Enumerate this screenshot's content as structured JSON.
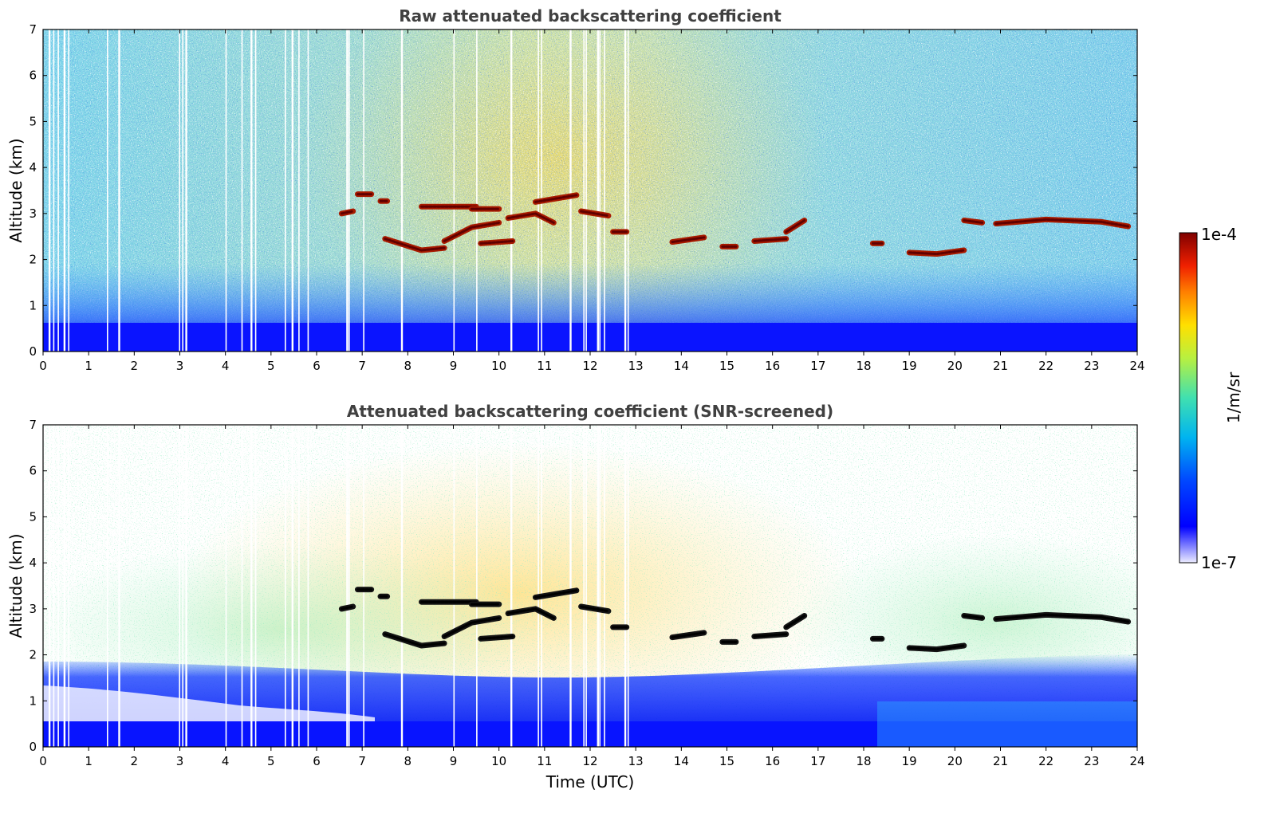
{
  "chart_data": [
    {
      "type": "heatmap",
      "title": "Raw attenuated backscattering coefficient",
      "xlabel": "",
      "ylabel": "Altitude (km)",
      "xlim": [
        0,
        24
      ],
      "ylim": [
        0,
        7
      ],
      "xticks": [
        "0",
        "1",
        "2",
        "3",
        "4",
        "5",
        "6",
        "7",
        "8",
        "9",
        "10",
        "11",
        "12",
        "13",
        "14",
        "15",
        "16",
        "17",
        "18",
        "19",
        "20",
        "21",
        "22",
        "23",
        "24"
      ],
      "yticks": [
        "0",
        "1",
        "2",
        "3",
        "4",
        "5",
        "6",
        "7"
      ],
      "background_level": "noisy",
      "features": [
        {
          "x": [
            6.55,
            6.8
          ],
          "y": [
            3.0,
            3.05
          ],
          "v": "high"
        },
        {
          "x": [
            6.9,
            7.2
          ],
          "y": [
            3.42,
            3.42
          ],
          "v": "high"
        },
        {
          "x": [
            7.4,
            7.55
          ],
          "y": [
            3.27,
            3.27
          ],
          "v": "high"
        },
        {
          "x": [
            7.5,
            8.3,
            8.8
          ],
          "y": [
            2.45,
            2.2,
            2.25
          ],
          "v": "high"
        },
        {
          "x": [
            8.8,
            9.4,
            10.0
          ],
          "y": [
            2.4,
            2.7,
            2.8
          ],
          "v": "high"
        },
        {
          "x": [
            8.3,
            9.5
          ],
          "y": [
            3.15,
            3.15
          ],
          "v": "high"
        },
        {
          "x": [
            9.4,
            10.0
          ],
          "y": [
            3.1,
            3.1
          ],
          "v": "high"
        },
        {
          "x": [
            9.6,
            10.3
          ],
          "y": [
            2.35,
            2.4
          ],
          "v": "high"
        },
        {
          "x": [
            10.2,
            10.8,
            11.2
          ],
          "y": [
            2.9,
            3.0,
            2.8
          ],
          "v": "high"
        },
        {
          "x": [
            10.8,
            11.7
          ],
          "y": [
            3.25,
            3.4
          ],
          "v": "high"
        },
        {
          "x": [
            11.8,
            12.4
          ],
          "y": [
            3.05,
            2.95
          ],
          "v": "high"
        },
        {
          "x": [
            12.5,
            12.8
          ],
          "y": [
            2.6,
            2.6
          ],
          "v": "high"
        },
        {
          "x": [
            13.8,
            14.5
          ],
          "y": [
            2.38,
            2.48
          ],
          "v": "high"
        },
        {
          "x": [
            14.9,
            15.2
          ],
          "y": [
            2.28,
            2.28
          ],
          "v": "high"
        },
        {
          "x": [
            15.6,
            16.3
          ],
          "y": [
            2.4,
            2.45
          ],
          "v": "high"
        },
        {
          "x": [
            16.3,
            16.7
          ],
          "y": [
            2.6,
            2.85
          ],
          "v": "high"
        },
        {
          "x": [
            18.2,
            18.4
          ],
          "y": [
            2.35,
            2.35
          ],
          "v": "high"
        },
        {
          "x": [
            19.0,
            19.6,
            20.2
          ],
          "y": [
            2.15,
            2.12,
            2.2
          ],
          "v": "high"
        },
        {
          "x": [
            20.2,
            20.6
          ],
          "y": [
            2.85,
            2.8
          ],
          "v": "high"
        },
        {
          "x": [
            20.9,
            22.0,
            23.2,
            23.8
          ],
          "y": [
            2.78,
            2.87,
            2.82,
            2.72
          ],
          "v": "high"
        }
      ]
    },
    {
      "type": "heatmap",
      "title": "Attenuated backscattering coefficient (SNR-screened)",
      "xlabel": "Time (UTC)",
      "ylabel": "Altitude (km)",
      "xlim": [
        0,
        24
      ],
      "ylim": [
        0,
        7
      ],
      "xticks": [
        "0",
        "1",
        "2",
        "3",
        "4",
        "5",
        "6",
        "7",
        "8",
        "9",
        "10",
        "11",
        "12",
        "13",
        "14",
        "15",
        "16",
        "17",
        "18",
        "19",
        "20",
        "21",
        "22",
        "23",
        "24"
      ],
      "yticks": [
        "0",
        "1",
        "2",
        "3",
        "4",
        "5",
        "6",
        "7"
      ],
      "background_level": "screened",
      "features": "same as raw panel (saturated black)"
    }
  ],
  "colorbar": {
    "label": "1/m/sr",
    "max_label": "1e-4",
    "min_label": "1e-7",
    "colors": [
      "#e8e8ff",
      "#0000ff",
      "#0060ff",
      "#00c8e8",
      "#50e0a0",
      "#c8f040",
      "#ffe000",
      "#ff8000",
      "#e02000",
      "#800000"
    ]
  }
}
